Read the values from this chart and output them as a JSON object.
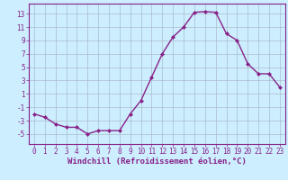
{
  "x": [
    0,
    1,
    2,
    3,
    4,
    5,
    6,
    7,
    8,
    9,
    10,
    11,
    12,
    13,
    14,
    15,
    16,
    17,
    18,
    19,
    20,
    21,
    22,
    23
  ],
  "y": [
    -2,
    -2.5,
    -3.5,
    -4,
    -4,
    -5,
    -4.5,
    -4.5,
    -4.5,
    -2,
    0,
    3.5,
    7,
    9.5,
    11,
    13.2,
    13.3,
    13.2,
    10,
    9,
    5.5,
    4,
    4,
    2
  ],
  "line_color": "#882288",
  "marker": "D",
  "marker_size": 2.0,
  "bg_color": "#cceeff",
  "grid_color": "#aabbcc",
  "xlabel": "Windchill (Refroidissement éolien,°C)",
  "xlabel_color": "#882288",
  "xlabel_fontsize": 6.5,
  "ylabel_ticks": [
    -5,
    -3,
    -1,
    1,
    3,
    5,
    7,
    9,
    11,
    13
  ],
  "xlim": [
    -0.5,
    23.5
  ],
  "ylim": [
    -6.5,
    14.5
  ],
  "xtick_labels": [
    "0",
    "1",
    "2",
    "3",
    "4",
    "5",
    "6",
    "7",
    "8",
    "9",
    "10",
    "11",
    "12",
    "13",
    "14",
    "15",
    "16",
    "17",
    "18",
    "19",
    "20",
    "21",
    "22",
    "23"
  ],
  "tick_fontsize": 5.5,
  "linewidth": 1.0
}
